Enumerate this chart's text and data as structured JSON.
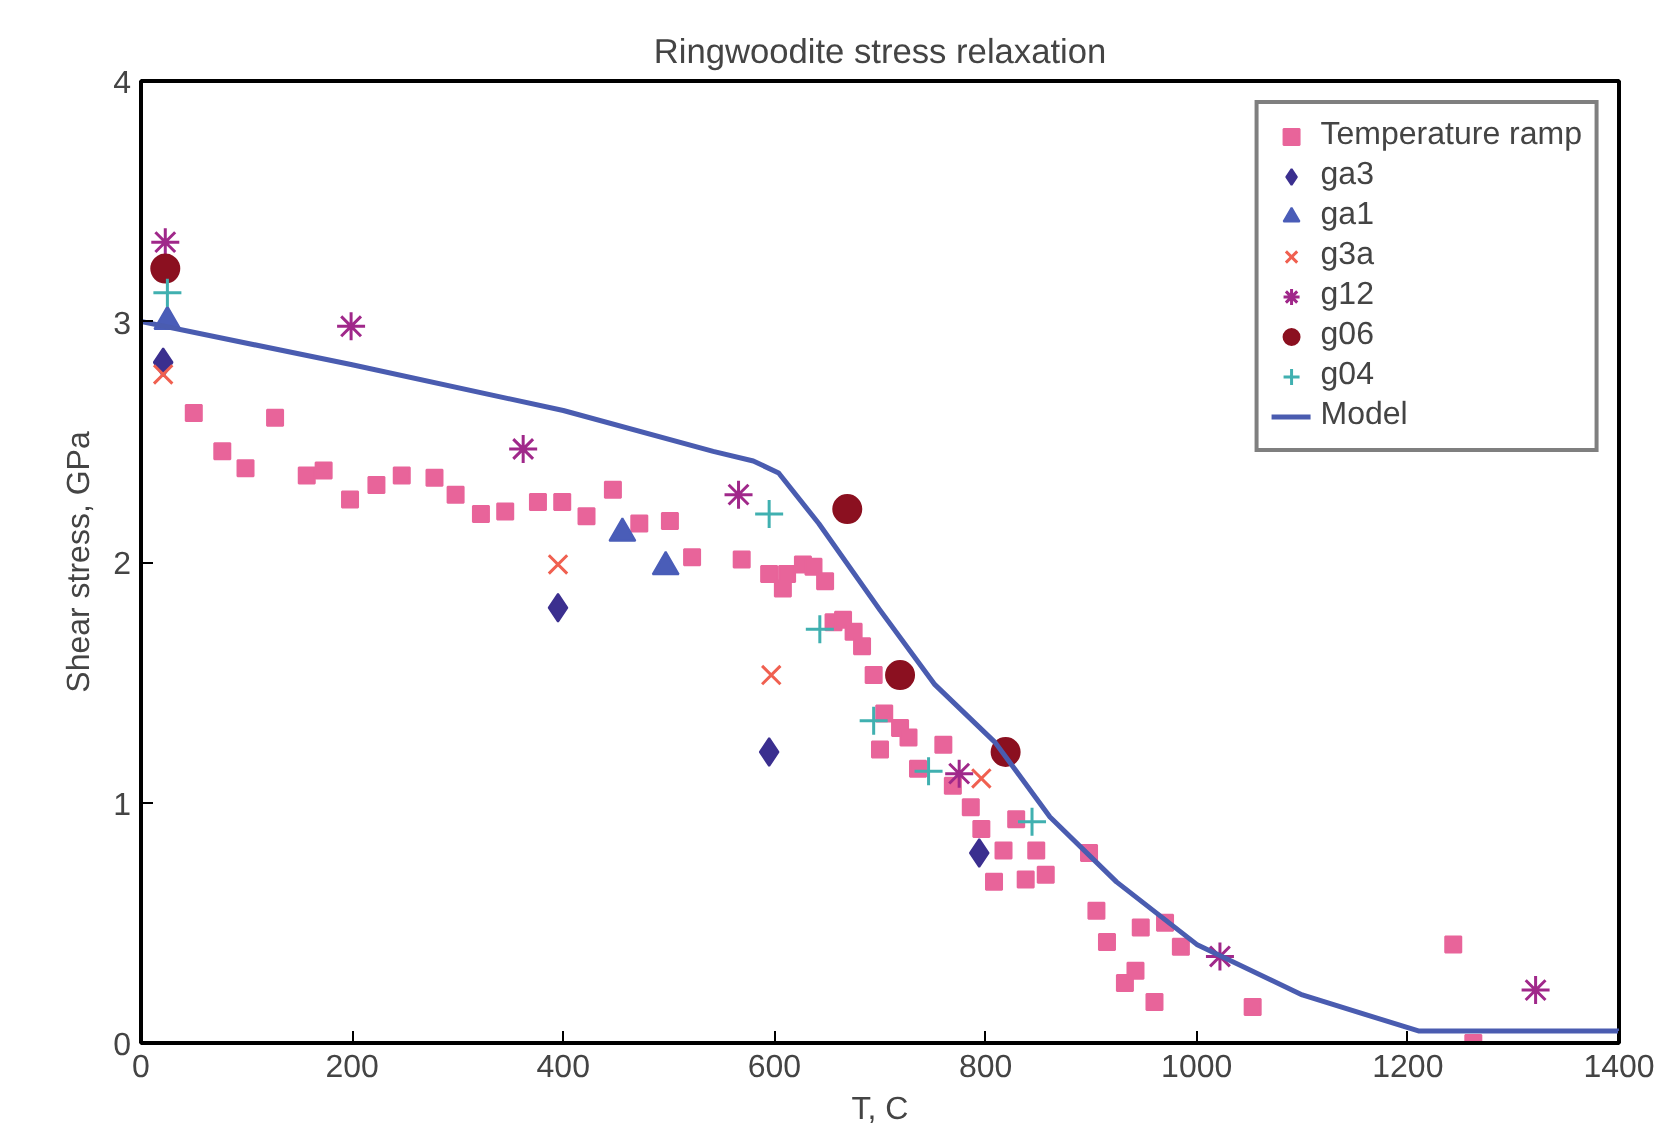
{
  "chart_data": {
    "type": "scatter",
    "title": "Ringwoodite stress relaxation",
    "xlabel": "T, C",
    "ylabel": "Shear stress, GPa",
    "xlim": [
      0,
      1400
    ],
    "ylim": [
      0,
      4
    ],
    "xticks": [
      0,
      200,
      400,
      600,
      800,
      1000,
      1200,
      1400
    ],
    "yticks": [
      0,
      1,
      2,
      3,
      4
    ],
    "grid": false,
    "legend": "top right",
    "series": [
      {
        "name": "Temperature ramp",
        "color": "#e8649a",
        "marker": "square",
        "x": [
          50,
          77,
          99,
          127,
          157,
          173,
          198,
          223,
          247,
          278,
          298,
          322,
          345,
          376,
          399,
          422,
          447,
          472,
          501,
          522,
          569,
          595,
          608,
          612,
          627,
          637,
          648,
          656,
          665,
          675,
          683,
          694,
          704,
          719,
          727,
          700,
          736,
          760,
          769,
          786,
          796,
          817,
          829,
          848,
          838,
          857,
          808,
          898,
          905,
          915,
          932,
          942,
          947,
          960,
          970,
          985,
          1053,
          1243,
          1262
        ],
        "values": [
          2.62,
          2.46,
          2.39,
          2.6,
          2.36,
          2.38,
          2.26,
          2.32,
          2.36,
          2.35,
          2.28,
          2.2,
          2.21,
          2.25,
          2.25,
          2.19,
          2.3,
          2.16,
          2.17,
          2.02,
          2.01,
          1.95,
          1.89,
          1.95,
          1.99,
          1.98,
          1.92,
          1.75,
          1.76,
          1.71,
          1.65,
          1.53,
          1.37,
          1.31,
          1.27,
          1.22,
          1.14,
          1.24,
          1.07,
          0.98,
          0.89,
          0.8,
          0.93,
          0.8,
          0.68,
          0.7,
          0.67,
          0.79,
          0.55,
          0.42,
          0.25,
          0.3,
          0.48,
          0.17,
          0.5,
          0.4,
          0.15,
          0.41,
          0.0
        ]
      },
      {
        "name": "ga3",
        "color": "#3b2f8f",
        "marker": "diamond",
        "x": [
          21,
          395,
          595,
          794
        ],
        "values": [
          2.83,
          1.81,
          1.21,
          0.79
        ]
      },
      {
        "name": "ga1",
        "color": "#4a5db8",
        "marker": "triangle",
        "x": [
          25,
          456,
          497
        ],
        "values": [
          3.0,
          2.12,
          1.98
        ]
      },
      {
        "name": "g3a",
        "color": "#f06050",
        "marker": "x",
        "x": [
          21,
          395,
          597,
          796
        ],
        "values": [
          2.78,
          1.99,
          1.53,
          1.1
        ]
      },
      {
        "name": "g12",
        "color": "#a0288a",
        "marker": "cross",
        "x": [
          23,
          199,
          362,
          566,
          775,
          1022,
          1321
        ],
        "values": [
          3.33,
          2.98,
          2.47,
          2.28,
          1.12,
          0.36,
          0.22
        ]
      },
      {
        "name": "g06",
        "color": "#8b1020",
        "marker": "circle",
        "x": [
          23,
          669,
          719,
          819
        ],
        "values": [
          3.22,
          2.22,
          1.53,
          1.21
        ]
      },
      {
        "name": "g04",
        "color": "#40b0b0",
        "marker": "plus",
        "x": [
          25,
          595,
          643,
          694,
          746,
          844
        ],
        "values": [
          3.12,
          2.2,
          1.72,
          1.34,
          1.13,
          0.92
        ]
      },
      {
        "name": "Model",
        "type": "line",
        "color": "#4a5cb0",
        "marker": "none",
        "x": [
          0,
          200,
          400,
          542,
          580,
          604,
          642,
          700,
          752,
          809,
          861,
          924,
          1000,
          1100,
          1210,
          1400
        ],
        "values": [
          3.0,
          2.82,
          2.63,
          2.46,
          2.42,
          2.37,
          2.16,
          1.8,
          1.49,
          1.25,
          0.94,
          0.67,
          0.41,
          0.2,
          0.05,
          0.05
        ]
      }
    ]
  }
}
